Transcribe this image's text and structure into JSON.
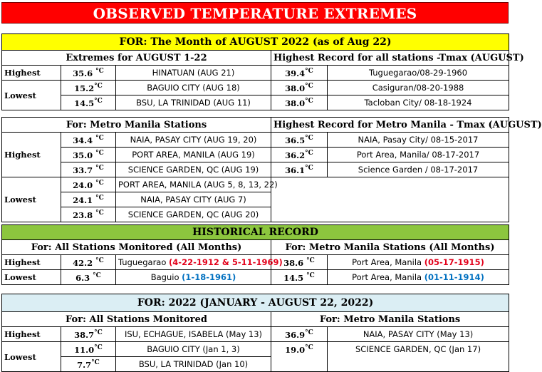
{
  "title": "OBSERVED TEMPERATURE EXTREMES",
  "month_band": "FOR:   The Month of AUGUST 2022 (as of  Aug 22)",
  "monthly": {
    "left_header": "Extremes for AUGUST 1-22",
    "right_header": "Highest Record for all stations -Tmax (AUGUST)",
    "highest_label": "Highest",
    "lowest_label": "Lowest",
    "rows": [
      {
        "val": "35.6",
        "station": "HINATUAN (AUG 21)",
        "rec_val": "39.4",
        "rec_station": "Tuguegarao/08-29-1960"
      },
      {
        "val": "15.2",
        "station": "BAGUIO CITY  (AUG 18)",
        "rec_val": "38.0",
        "rec_station": "Casiguran/08-20-1988"
      },
      {
        "val": "14.5",
        "station": "BSU, LA TRINIDAD (AUG 11)",
        "rec_val": "38.0",
        "rec_station": "Tacloban City/ 08-18-1924"
      }
    ]
  },
  "metro": {
    "left_header": "For: Metro Manila Stations",
    "right_header": "Highest Record for Metro Manila - Tmax (AUGUST)",
    "highest_label": "Highest",
    "lowest_label": "Lowest",
    "high_rows": [
      {
        "val": "34.4",
        "station": "NAIA, PASAY CITY (AUG 19, 20)",
        "rec_val": "36.5",
        "rec_station": "NAIA, Pasay City/ 08-15-2017"
      },
      {
        "val": "35.0",
        "station": "PORT AREA, MANILA (AUG 19)",
        "rec_val": "36.2",
        "rec_station": "Port Area, Manila/ 08-17-2017"
      },
      {
        "val": "33.7",
        "station": "SCIENCE GARDEN, QC (AUG 19)",
        "rec_val": "36.1",
        "rec_station": "Science Garden / 08-17-2017"
      }
    ],
    "low_rows": [
      {
        "val": "24.0",
        "station": "PORT AREA, MANILA (AUG 5, 8, 13, 22)"
      },
      {
        "val": "24.1",
        "station": "NAIA, PASAY CITY (AUG 7)"
      },
      {
        "val": "23.8",
        "station": "SCIENCE GARDEN, QC (AUG 20)"
      }
    ]
  },
  "historical": {
    "band": "HISTORICAL RECORD",
    "left_header": "For:  All Stations Monitored (All Months)",
    "right_header": "For: Metro Manila Stations (All Months)",
    "highest_label": "Highest",
    "lowest_label": "Lowest",
    "high": {
      "val": "42.2",
      "station": "Tuguegarao",
      "date": "(4-22-1912 & 5-11-1969)",
      "mm_val": "38.6",
      "mm_station": "Port Area, Manila",
      "mm_date": "(05-17-1915)"
    },
    "low": {
      "val": "6.3",
      "station": "Baguio",
      "date": "(1-18-1961)",
      "mm_val": "14.5",
      "mm_station": "Port Area, Manila",
      "mm_date": "(01-11-1914)"
    }
  },
  "year": {
    "band": "FOR:     2022 (JANUARY - AUGUST 22, 2022)",
    "left_header": "For:  All Stations Monitored",
    "right_header": "For: Metro Manila Stations",
    "highest_label": "Highest",
    "lowest_label": "Lowest",
    "rows": [
      {
        "val": "38.7",
        "station": "ISU, ECHAGUE, ISABELA (May 13)",
        "mm_val": "36.9",
        "mm_station": "NAIA, PASAY CITY (May 13)"
      },
      {
        "val": "11.0",
        "station": "BAGUIO CITY  (Jan 1, 3)",
        "mm_val": "19.0",
        "mm_station": "SCIENCE GARDEN, QC (Jan 17)"
      },
      {
        "val": "7.7",
        "station": "BSU, LA TRINIDAD (Jan 10)"
      }
    ]
  },
  "unit": "°C",
  "colors": {
    "title_bg": "#ff0000",
    "band_yellow": "#ffff00",
    "band_green": "#8cc63e",
    "band_lightblue": "#dbeef4",
    "record_red": "#e2001a",
    "record_blue": "#0070c0"
  }
}
